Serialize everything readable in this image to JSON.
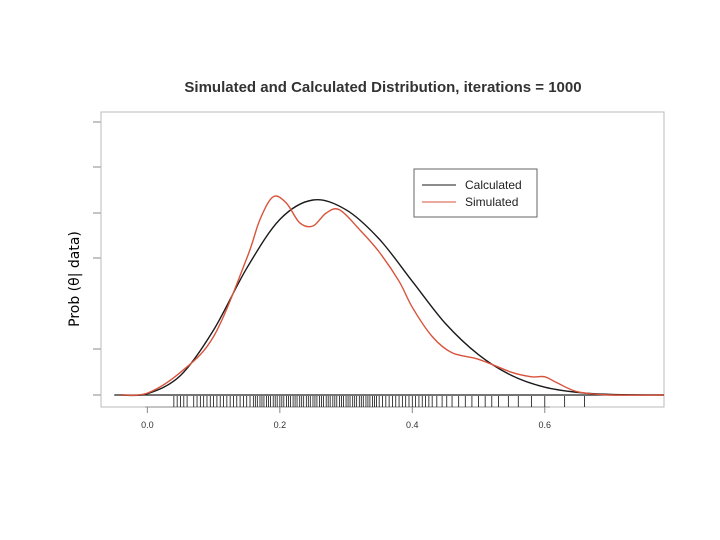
{
  "chart_data": {
    "type": "line",
    "title": "Simulated and Calculated Distribution, iterations =  1000",
    "ylabel": "Prob (θ| data)",
    "xlabel": "",
    "xlim": [
      -0.07,
      0.78
    ],
    "ylim": [
      0,
      4.2
    ],
    "x_ticks": [
      "0.0",
      "0.2",
      "0.4",
      "0.6"
    ],
    "x_tick_values": [
      0.0,
      0.2,
      0.4,
      0.6
    ],
    "grid": false,
    "legend_position": "top-right",
    "colors": {
      "calculated": "#1a1a1a",
      "simulated": "#d9533c"
    },
    "series": [
      {
        "name": "Calculated",
        "x": [
          -0.04,
          0.0,
          0.05,
          0.1,
          0.15,
          0.2,
          0.25,
          0.3,
          0.35,
          0.4,
          0.45,
          0.5,
          0.55,
          0.6,
          0.65,
          0.7,
          0.78
        ],
        "y": [
          0.0,
          0.02,
          0.3,
          1.0,
          1.95,
          2.7,
          3.0,
          2.85,
          2.4,
          1.75,
          1.1,
          0.62,
          0.3,
          0.12,
          0.04,
          0.01,
          0.0
        ]
      },
      {
        "name": "Simulated",
        "x": [
          -0.04,
          0.0,
          0.05,
          0.1,
          0.15,
          0.17,
          0.19,
          0.21,
          0.23,
          0.25,
          0.27,
          0.29,
          0.32,
          0.35,
          0.38,
          0.4,
          0.43,
          0.46,
          0.5,
          0.55,
          0.58,
          0.6,
          0.62,
          0.65,
          0.7,
          0.78
        ],
        "y": [
          0.0,
          0.03,
          0.35,
          0.9,
          2.1,
          2.7,
          3.05,
          2.95,
          2.65,
          2.6,
          2.8,
          2.85,
          2.55,
          2.2,
          1.75,
          1.35,
          0.9,
          0.65,
          0.55,
          0.35,
          0.28,
          0.28,
          0.18,
          0.05,
          0.0,
          0.0
        ]
      }
    ],
    "rug_note": "",
    "rug": [
      0.04,
      0.045,
      0.05,
      0.055,
      0.06,
      0.07,
      0.075,
      0.08,
      0.085,
      0.09,
      0.095,
      0.1,
      0.105,
      0.11,
      0.115,
      0.12,
      0.125,
      0.13,
      0.135,
      0.14,
      0.145,
      0.15,
      0.155,
      0.16,
      0.163,
      0.166,
      0.17,
      0.173,
      0.176,
      0.18,
      0.183,
      0.186,
      0.19,
      0.193,
      0.196,
      0.2,
      0.203,
      0.206,
      0.21,
      0.213,
      0.216,
      0.22,
      0.223,
      0.226,
      0.23,
      0.233,
      0.236,
      0.24,
      0.243,
      0.246,
      0.25,
      0.253,
      0.256,
      0.26,
      0.263,
      0.266,
      0.27,
      0.273,
      0.276,
      0.28,
      0.283,
      0.286,
      0.29,
      0.293,
      0.296,
      0.3,
      0.303,
      0.306,
      0.31,
      0.313,
      0.316,
      0.32,
      0.323,
      0.326,
      0.33,
      0.333,
      0.336,
      0.34,
      0.343,
      0.346,
      0.35,
      0.355,
      0.36,
      0.365,
      0.37,
      0.375,
      0.38,
      0.385,
      0.39,
      0.395,
      0.4,
      0.405,
      0.41,
      0.415,
      0.42,
      0.425,
      0.43,
      0.437,
      0.445,
      0.452,
      0.46,
      0.47,
      0.48,
      0.49,
      0.5,
      0.51,
      0.52,
      0.53,
      0.545,
      0.56,
      0.58,
      0.6,
      0.63,
      0.66
    ]
  }
}
